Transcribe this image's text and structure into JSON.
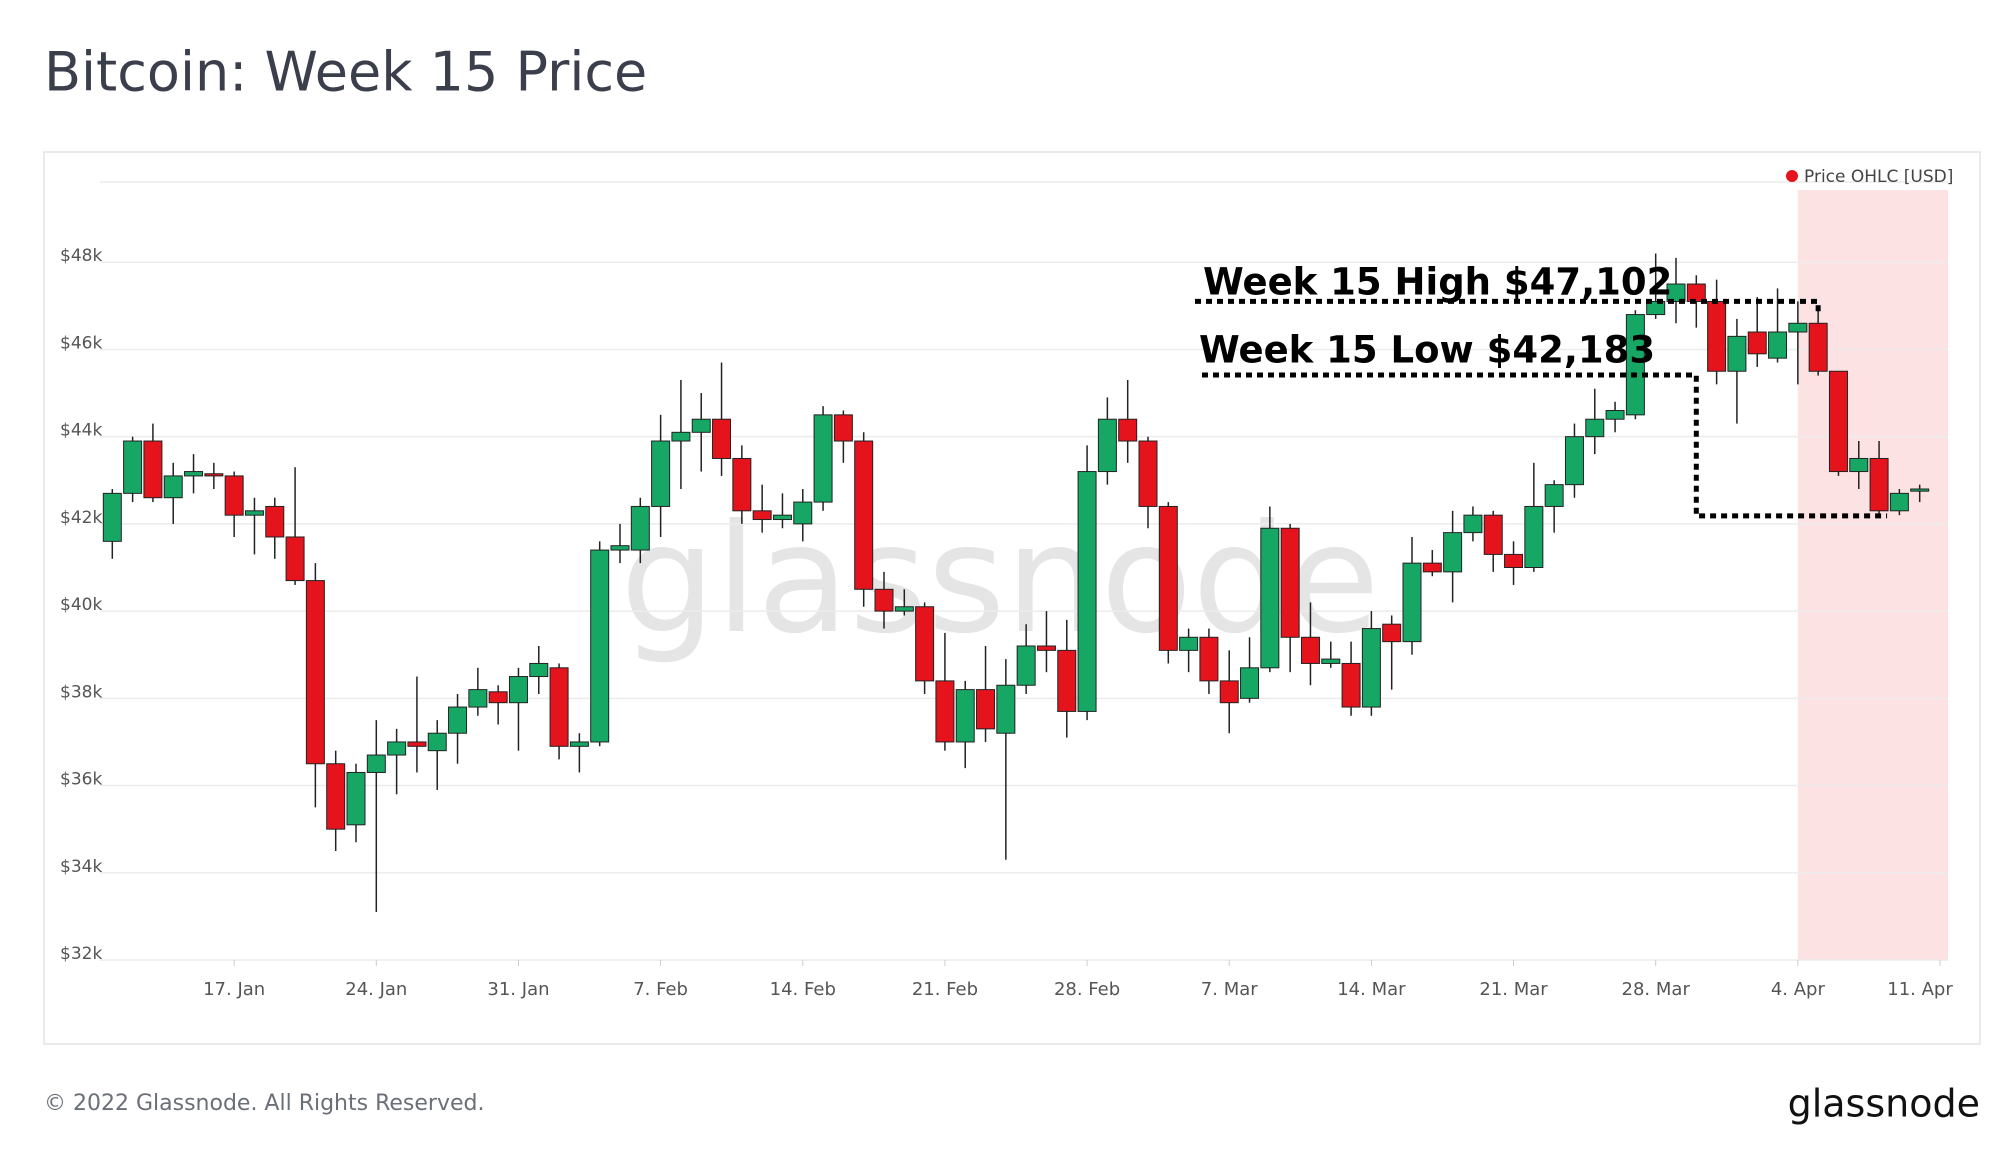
{
  "chart_data": {
    "type": "candlestick",
    "title": "Bitcoin: Week 15 Price",
    "x": [
      "01-11",
      "01-12",
      "01-13",
      "01-14",
      "01-15",
      "01-16",
      "01-17",
      "01-18",
      "01-19",
      "01-20",
      "01-21",
      "01-22",
      "01-23",
      "01-24",
      "01-25",
      "01-26",
      "01-27",
      "01-28",
      "01-29",
      "01-30",
      "01-31",
      "02-01",
      "02-02",
      "02-03",
      "02-04",
      "02-05",
      "02-06",
      "02-07",
      "02-08",
      "02-09",
      "02-10",
      "02-11",
      "02-12",
      "02-13",
      "02-14",
      "02-15",
      "02-16",
      "02-17",
      "02-18",
      "02-19",
      "02-20",
      "02-21",
      "02-22",
      "02-23",
      "02-24",
      "02-25",
      "02-26",
      "02-27",
      "02-28",
      "03-01",
      "03-02",
      "03-03",
      "03-04",
      "03-05",
      "03-06",
      "03-07",
      "03-08",
      "03-09",
      "03-10",
      "03-11",
      "03-12",
      "03-13",
      "03-14",
      "03-15",
      "03-16",
      "03-17",
      "03-18",
      "03-19",
      "03-20",
      "03-21",
      "03-22",
      "03-23",
      "03-24",
      "03-25",
      "03-26",
      "03-27",
      "03-28",
      "03-29",
      "03-30",
      "03-31",
      "04-01",
      "04-02",
      "04-03",
      "04-04",
      "04-05",
      "04-06",
      "04-07",
      "04-08",
      "04-09",
      "04-10"
    ],
    "series": [
      {
        "name": "Price OHLC [USD]",
        "color": "#e5141c",
        "up_color": "#16a765",
        "down_color": "#e5141c",
        "open": [
          41600,
          42700,
          43900,
          42600,
          43100,
          43150,
          43100,
          42200,
          42400,
          41700,
          40700,
          36500,
          35100,
          36300,
          36700,
          37000,
          36800,
          37200,
          37800,
          38150,
          37900,
          38500,
          38700,
          36900,
          37000,
          41400,
          41400,
          42400,
          43900,
          44100,
          44400,
          43500,
          42300,
          42100,
          42000,
          42500,
          44500,
          43900,
          40500,
          40000,
          40100,
          38400,
          37000,
          38200,
          37200,
          38300,
          39200,
          39100,
          37700,
          43200,
          44400,
          43900,
          42400,
          39100,
          39400,
          38400,
          38000,
          38700,
          41900,
          39400,
          38800,
          38800,
          37800,
          39700,
          39300,
          41100,
          40900,
          41800,
          42200,
          41300,
          41000,
          42400,
          42900,
          44000,
          44400,
          44500,
          46800,
          47100,
          47500,
          47100,
          45500,
          46400,
          45800,
          46400,
          46600,
          45500,
          43200,
          43500,
          42300,
          42750
        ],
        "high": [
          42800,
          44000,
          44300,
          43400,
          43600,
          43400,
          43200,
          42600,
          42600,
          43300,
          41100,
          36800,
          36500,
          37500,
          37300,
          38500,
          37500,
          38100,
          38700,
          38300,
          38700,
          39200,
          38800,
          37200,
          41600,
          42000,
          42600,
          44500,
          45300,
          45000,
          45700,
          43800,
          42900,
          42700,
          42800,
          44700,
          44600,
          44100,
          40900,
          40500,
          40200,
          39500,
          38400,
          39200,
          38900,
          39700,
          40000,
          39800,
          43800,
          44900,
          45300,
          44000,
          42500,
          39600,
          39600,
          39100,
          39400,
          42400,
          42000,
          40200,
          39300,
          39300,
          40000,
          39900,
          41700,
          41400,
          42300,
          42400,
          42300,
          41600,
          43400,
          43000,
          44300,
          45100,
          44800,
          46900,
          48200,
          48100,
          47700,
          47600,
          46700,
          47200,
          47400,
          47102,
          47000,
          45500,
          43900,
          43900,
          42800,
          42900
        ],
        "low": [
          41200,
          42500,
          42500,
          42000,
          42700,
          42800,
          41700,
          41300,
          41200,
          40600,
          35500,
          34500,
          34700,
          33100,
          35800,
          36300,
          35900,
          36500,
          37600,
          37400,
          36800,
          38100,
          36600,
          36300,
          36900,
          41100,
          41100,
          41700,
          42800,
          43200,
          43100,
          42000,
          41800,
          41900,
          41600,
          42300,
          43400,
          40100,
          39600,
          39900,
          38100,
          36800,
          36400,
          37000,
          34300,
          38100,
          38600,
          37100,
          37500,
          42900,
          43400,
          41900,
          38800,
          38600,
          38100,
          37200,
          37900,
          38600,
          38600,
          38300,
          38700,
          37600,
          37600,
          38200,
          39000,
          40800,
          40200,
          41600,
          40900,
          40600,
          40900,
          41800,
          42600,
          43600,
          44100,
          44400,
          46700,
          46600,
          46500,
          45200,
          44300,
          45600,
          45700,
          45200,
          45400,
          43100,
          42800,
          42183,
          42200,
          42500
        ],
        "close": [
          42700,
          43900,
          42600,
          43100,
          43200,
          43100,
          42200,
          42300,
          41700,
          40700,
          36500,
          35000,
          36300,
          36700,
          37000,
          36900,
          37200,
          37800,
          38200,
          37900,
          38500,
          38800,
          36900,
          37000,
          41400,
          41500,
          42400,
          43900,
          44100,
          44400,
          43500,
          42300,
          42100,
          42200,
          42500,
          44500,
          43900,
          40500,
          40000,
          40100,
          38400,
          37000,
          38200,
          37300,
          38300,
          39200,
          39100,
          37700,
          43200,
          44400,
          43900,
          42400,
          39100,
          39400,
          38400,
          37900,
          38700,
          41900,
          39400,
          38800,
          38900,
          37800,
          39600,
          39300,
          41100,
          40900,
          41800,
          42200,
          41300,
          41000,
          42400,
          42900,
          44000,
          44400,
          44600,
          46800,
          47100,
          47500,
          47100,
          45500,
          46300,
          45900,
          46400,
          46600,
          45500,
          43200,
          43500,
          42300,
          42700,
          42800
        ]
      }
    ],
    "xlim": [
      "01-10",
      "04-11"
    ],
    "xticks": [
      {
        "value": "01-17",
        "label": "17. Jan"
      },
      {
        "value": "01-24",
        "label": "24. Jan"
      },
      {
        "value": "01-31",
        "label": "31. Jan"
      },
      {
        "value": "02-07",
        "label": "7. Feb"
      },
      {
        "value": "02-14",
        "label": "14. Feb"
      },
      {
        "value": "02-21",
        "label": "21. Feb"
      },
      {
        "value": "02-28",
        "label": "28. Feb"
      },
      {
        "value": "03-07",
        "label": "7. Mar"
      },
      {
        "value": "03-14",
        "label": "14. Mar"
      },
      {
        "value": "03-21",
        "label": "21. Mar"
      },
      {
        "value": "03-28",
        "label": "28. Mar"
      },
      {
        "value": "04-04",
        "label": "4. Apr"
      },
      {
        "value": "04-11",
        "label": "11. Apr"
      }
    ],
    "ylim": [
      32000,
      50000
    ],
    "yticks": [
      {
        "value": 32000,
        "label": "$32k"
      },
      {
        "value": 34000,
        "label": "$34k"
      },
      {
        "value": 36000,
        "label": "$36k"
      },
      {
        "value": 38000,
        "label": "$38k"
      },
      {
        "value": 40000,
        "label": "$40k"
      },
      {
        "value": 42000,
        "label": "$42k"
      },
      {
        "value": 44000,
        "label": "$44k"
      },
      {
        "value": 46000,
        "label": "$46k"
      },
      {
        "value": 48000,
        "label": "$48k"
      }
    ],
    "grid": true,
    "legend": "top-right",
    "shaded_range": [
      "04-04",
      "04-11"
    ],
    "shaded_color": "#fde2e3",
    "annotations": [
      {
        "text": "Week 15 High $47,102",
        "value": 47102
      },
      {
        "text": "Week 15 Low $42,183",
        "value": 42183
      }
    ],
    "watermark": "glassnode",
    "footer": "© 2022 Glassnode. All Rights Reserved.",
    "logo": "glassnode"
  }
}
